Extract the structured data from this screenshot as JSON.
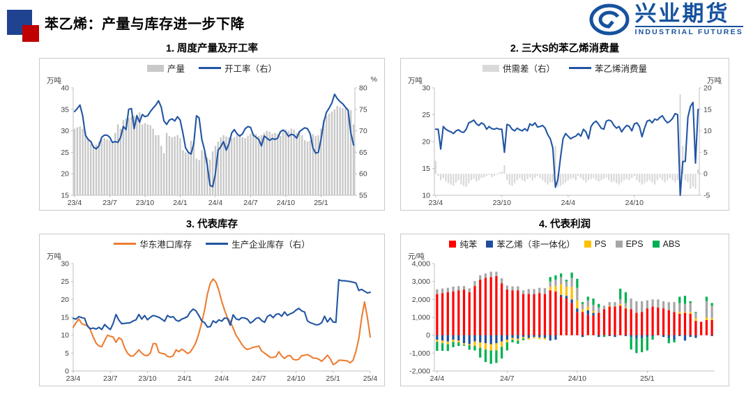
{
  "header": {
    "title": "苯乙烯：产量与库存进一步下降",
    "logo_cn": "兴业期货",
    "logo_en": "INDUSTRIAL FUTURES",
    "logo_color": "#16529E"
  },
  "chart_data": [
    {
      "type": "bar+line",
      "title": "1. 周度产量及开工率",
      "x_ticks": [
        "23/4",
        "23/7",
        "23/10",
        "24/1",
        "24/4",
        "24/7",
        "24/10",
        "25/1"
      ],
      "x_tick_step": 13,
      "y_left": {
        "label": "万吨",
        "min": 15,
        "max": 40,
        "ticks": [
          15,
          20,
          25,
          30,
          35,
          40
        ]
      },
      "y_right": {
        "label": "%",
        "min": 55,
        "max": 80,
        "ticks": [
          55,
          60,
          65,
          70,
          75,
          80
        ]
      },
      "series": [
        {
          "name": "产量",
          "type": "bar",
          "axis": "left",
          "color": "#C8C8C8",
          "values": [
            30.5,
            30.8,
            31.0,
            30.5,
            30.0,
            28.0,
            27.0,
            26.5,
            26.8,
            27.5,
            28.0,
            28.3,
            28.0,
            27.8,
            27.3,
            29.5,
            31.5,
            30.5,
            32.5,
            32.8,
            33.0,
            33.3,
            33.5,
            33.8,
            34.3,
            31.5,
            31.8,
            31.5,
            31.3,
            30.5,
            29.0,
            29.0,
            26.5,
            24.8,
            29.5,
            28.8,
            28.5,
            28.7,
            29.0,
            28.3,
            25.5,
            25.0,
            25.2,
            27.7,
            27.5,
            23.5,
            23.2,
            25.5,
            25.0,
            23.8,
            23.3,
            25.2,
            26.5,
            27.5,
            28.5,
            29.0,
            28.7,
            28.5,
            28.3,
            28.5,
            29.0,
            28.8,
            28.5,
            28.3,
            28.8,
            29.3,
            29.5,
            29.2,
            28.8,
            29.0,
            29.5,
            30.0,
            29.8,
            29.3,
            29.5,
            29.3,
            28.8,
            29.8,
            30.3,
            30.0,
            30.5,
            30.3,
            29.5,
            30.0,
            29.0,
            27.8,
            27.5,
            27.7,
            29.2,
            28.8,
            29.0,
            30.5,
            32.5,
            33.5,
            34.0,
            34.5,
            35.0,
            35.8,
            35.5,
            35.3,
            35.2,
            35.0,
            34.8,
            31.5
          ]
        },
        {
          "name": "开工率（右）",
          "type": "line",
          "axis": "right",
          "color": "#2155A3",
          "values": [
            74.5,
            75.2,
            76.0,
            73.5,
            69.0,
            68.0,
            67.5,
            66.2,
            65.8,
            66.5,
            68.5,
            69.0,
            69.0,
            68.5,
            67.3,
            67.5,
            67.3,
            68.5,
            71.0,
            70.3,
            75.0,
            75.2,
            70.5,
            73.5,
            72.0,
            73.8,
            73.3,
            73.5,
            74.5,
            75.3,
            76.0,
            77.0,
            75.5,
            72.3,
            71.5,
            72.5,
            72.8,
            72.3,
            73.3,
            72.5,
            69.5,
            66.0,
            65.0,
            64.6,
            67.0,
            73.5,
            73.0,
            68.0,
            65.5,
            62.0,
            57.3,
            57.0,
            60.0,
            65.5,
            66.3,
            67.5,
            65.5,
            67.0,
            69.5,
            70.3,
            69.3,
            68.8,
            69.3,
            70.5,
            71.0,
            70.8,
            69.0,
            68.5,
            68.0,
            66.5,
            68.8,
            68.3,
            67.8,
            68.2,
            68.0,
            68.3,
            69.8,
            70.2,
            69.7,
            68.7,
            69.2,
            69.0,
            68.3,
            69.8,
            70.3,
            70.7,
            70.5,
            69.3,
            66.0,
            64.8,
            65.0,
            68.0,
            72.0,
            74.3,
            75.3,
            76.5,
            78.5,
            77.5,
            76.8,
            76.3,
            75.5,
            74.8,
            69.5,
            66.7
          ]
        }
      ]
    },
    {
      "type": "bar+line",
      "title": "2. 三大S的苯乙烯消费量",
      "x_ticks": [
        "23/4",
        "23/10",
        "24/4",
        "24/10"
      ],
      "x_tick_step": 26,
      "y_left": {
        "label": "万吨",
        "min": 10,
        "max": 30,
        "ticks": [
          10,
          15,
          20,
          25,
          30
        ]
      },
      "y_right": {
        "label": "万吨",
        "min": -5,
        "max": 20,
        "ticks": [
          -5,
          0,
          5,
          10,
          15,
          20
        ]
      },
      "series": [
        {
          "name": "供需差（右）",
          "type": "bar",
          "axis": "right",
          "color": "#D9D9D9",
          "values": [
            3.0,
            -0.5,
            -1.5,
            -1.0,
            -1.8,
            -2.2,
            -2.5,
            -2.8,
            -2.0,
            -1.5,
            -2.5,
            -2.8,
            -3.0,
            -2.2,
            -1.5,
            -1.2,
            -1.8,
            -1.5,
            -1.0,
            -0.8,
            -0.5,
            -0.3,
            -0.8,
            -0.5,
            -0.2,
            0.3,
            0.5,
            2.0,
            -1.5,
            -2.5,
            -2.8,
            -2.2,
            -1.5,
            -1.0,
            -1.5,
            -1.8,
            -1.2,
            -0.8,
            -1.5,
            -1.0,
            -0.5,
            -1.0,
            -1.5,
            -2.0,
            -2.5,
            -2.0,
            -2.0,
            6.5,
            -3.0,
            -2.8,
            -2.5,
            -2.0,
            -1.5,
            -1.2,
            -1.0,
            -1.5,
            -0.5,
            -1.0,
            -1.5,
            -2.0,
            -1.5,
            -1.2,
            -1.0,
            -1.5,
            -1.8,
            -1.5,
            -1.2,
            -0.8,
            -1.5,
            -2.0,
            -1.8,
            -2.2,
            -2.5,
            -2.0,
            -1.5,
            -1.2,
            -1.5,
            -1.0,
            -0.5,
            -1.5,
            -2.0,
            -2.5,
            -2.2,
            -1.8,
            -1.5,
            -2.0,
            -2.5,
            -1.5,
            -1.0,
            -1.5,
            -2.0,
            -1.5,
            -1.0,
            -1.5,
            -2.0,
            -1.5,
            18.5,
            6.5,
            -1.5,
            -2.0,
            -3.5,
            -3.0,
            -3.5,
            1.0
          ]
        },
        {
          "name": "苯乙烯消费量",
          "type": "line",
          "axis": "left",
          "color": "#2155A3",
          "values": [
            22.3,
            22.3,
            18.6,
            22.8,
            22.3,
            22.0,
            21.8,
            21.5,
            22.0,
            22.2,
            21.8,
            21.7,
            22.3,
            23.5,
            23.7,
            24.0,
            23.3,
            23.0,
            23.5,
            23.2,
            22.3,
            22.8,
            22.4,
            22.3,
            22.5,
            22.3,
            22.3,
            18.0,
            23.2,
            23.0,
            22.3,
            22.0,
            22.5,
            22.2,
            22.0,
            22.4,
            22.0,
            23.3,
            23.0,
            23.5,
            22.7,
            22.8,
            23.0,
            22.5,
            21.3,
            20.5,
            18.8,
            11.5,
            13.0,
            17.0,
            20.5,
            21.5,
            21.0,
            20.5,
            20.8,
            21.0,
            21.5,
            21.0,
            22.3,
            21.8,
            20.5,
            22.8,
            23.5,
            23.8,
            23.2,
            22.5,
            22.3,
            23.8,
            24.0,
            23.8,
            23.0,
            22.5,
            22.8,
            21.8,
            22.5,
            23.0,
            22.8,
            22.0,
            23.3,
            23.5,
            22.8,
            20.9,
            22.5,
            23.8,
            24.0,
            23.5,
            24.2,
            24.0,
            24.5,
            24.8,
            24.0,
            23.5,
            23.8,
            24.3,
            25.2,
            25.0,
            9.8,
            16.3,
            16.3,
            24.5,
            26.5,
            27.3,
            16.0,
            26.0
          ]
        }
      ]
    },
    {
      "type": "line",
      "title": "3. 代表库存",
      "x_ticks": [
        "23/4",
        "23/7",
        "23/10",
        "24/1",
        "24/4",
        "24/7",
        "24/10",
        "25/1",
        "25/4"
      ],
      "x_tick_step": 13,
      "y_left": {
        "label": "万吨",
        "min": 0,
        "max": 30,
        "ticks": [
          0,
          5,
          10,
          15,
          20,
          25,
          30
        ]
      },
      "series": [
        {
          "name": "华东港口库存",
          "type": "line",
          "axis": "left",
          "color": "#ED7D31",
          "values": [
            12.2,
            13.5,
            14.5,
            13.2,
            12.9,
            12.8,
            11.5,
            9.5,
            7.8,
            7.0,
            6.8,
            8.5,
            10.0,
            9.7,
            9.5,
            8.0,
            9.3,
            8.8,
            6.5,
            5.0,
            4.2,
            4.2,
            5.0,
            5.9,
            5.0,
            4.4,
            4.3,
            5.0,
            7.7,
            7.6,
            5.2,
            4.9,
            4.8,
            4.1,
            3.9,
            4.3,
            5.9,
            5.4,
            6.1,
            5.6,
            4.9,
            5.3,
            6.5,
            8.0,
            10.5,
            13.5,
            17.0,
            21.5,
            24.5,
            25.7,
            24.8,
            22.5,
            19.5,
            17.0,
            14.8,
            13.8,
            12.0,
            10.0,
            8.8,
            7.5,
            6.5,
            6.0,
            6.3,
            6.6,
            6.8,
            7.0,
            5.6,
            5.0,
            4.4,
            3.8,
            3.8,
            4.0,
            5.4,
            4.2,
            3.5,
            4.2,
            4.3,
            3.3,
            3.1,
            3.3,
            4.3,
            4.4,
            4.6,
            4.2,
            3.6,
            3.6,
            3.3,
            2.7,
            3.5,
            4.4,
            3.4,
            1.8,
            2.2,
            3.0,
            3.0,
            2.9,
            2.8,
            2.3,
            3.0,
            5.5,
            9.0,
            14.8,
            19.3,
            15.0,
            9.5
          ]
        },
        {
          "name": "生产企业库存（右）",
          "type": "line",
          "axis": "left",
          "color": "#2155A3",
          "values": [
            14.7,
            14.5,
            15.2,
            14.9,
            14.7,
            12.5,
            11.8,
            12.0,
            11.7,
            12.2,
            11.6,
            13.0,
            12.2,
            11.6,
            13.3,
            15.8,
            14.2,
            13.2,
            13.3,
            13.4,
            13.5,
            14.0,
            14.3,
            15.8,
            14.5,
            15.5,
            14.3,
            15.0,
            15.5,
            15.3,
            15.0,
            14.5,
            13.9,
            15.5,
            15.0,
            15.2,
            14.2,
            13.9,
            14.5,
            14.8,
            15.2,
            16.5,
            17.3,
            16.8,
            15.5,
            14.0,
            13.5,
            12.3,
            12.4,
            14.0,
            13.5,
            14.3,
            13.9,
            14.8,
            14.7,
            12.8,
            15.7,
            14.6,
            14.3,
            14.9,
            14.8,
            14.5,
            13.4,
            13.9,
            14.7,
            14.9,
            14.1,
            13.6,
            15.2,
            15.7,
            14.9,
            15.8,
            16.0,
            15.3,
            16.5,
            15.5,
            16.0,
            16.3,
            17.0,
            17.5,
            16.8,
            16.5,
            14.0,
            13.5,
            13.2,
            12.9,
            13.0,
            13.5,
            15.3,
            13.7,
            14.8,
            13.7,
            13.6,
            25.5,
            25.2,
            25.2,
            25.1,
            25.0,
            24.8,
            24.6,
            22.5,
            22.8,
            22.3,
            21.8,
            22.0
          ]
        }
      ]
    },
    {
      "type": "stacked-bar",
      "title": "4. 代表利润",
      "x_ticks": [
        "24/4",
        "24/7",
        "24/10",
        "25/1"
      ],
      "x_tick_step": 13,
      "y_left": {
        "label": "元/吨",
        "min": -2000,
        "max": 4000,
        "ticks": [
          -2000,
          -1000,
          0,
          1000,
          2000,
          3000,
          4000
        ],
        "tick_labels": [
          "-2,000",
          "-1,000",
          "0",
          "1,000",
          "2,000",
          "3,000",
          "4,000"
        ]
      },
      "series": [
        {
          "name": "纯苯",
          "type": "bar",
          "axis": "left",
          "color": "#FF0000",
          "values": [
            2300,
            2350,
            2400,
            2450,
            2500,
            2550,
            2400,
            2750,
            3100,
            3200,
            3250,
            3300,
            2900,
            2550,
            2500,
            2500,
            2300,
            2300,
            2300,
            2350,
            2300,
            2500,
            2450,
            2150,
            2050,
            1800,
            1300,
            1300,
            1150,
            1100,
            1250,
            1450,
            1600,
            1600,
            1650,
            1500,
            1450,
            1250,
            1300,
            1500,
            1600,
            1550,
            1500,
            1400,
            1300,
            1200,
            1250,
            1200,
            800,
            750,
            850,
            850
          ]
        },
        {
          "name": "苯乙烯（非一体化）",
          "type": "bar",
          "axis": "left",
          "color": "#1F4E9B",
          "values": [
            -250,
            -300,
            -350,
            -250,
            -300,
            -450,
            -500,
            -350,
            -400,
            -450,
            -500,
            -450,
            -350,
            -250,
            -150,
            -200,
            -100,
            -150,
            -100,
            -120,
            -150,
            -300,
            -250,
            100,
            150,
            200,
            200,
            -100,
            250,
            150,
            -100,
            0,
            -50,
            -100,
            0,
            -50,
            -100,
            -200,
            -150,
            -100,
            -50,
            0,
            -100,
            -150,
            -250,
            -50,
            -300,
            -100,
            -150,
            0,
            0,
            -50
          ]
        },
        {
          "name": "PS",
          "type": "bar",
          "axis": "left",
          "color": "#FFC000",
          "values": [
            -120,
            -150,
            -150,
            -120,
            -100,
            -80,
            -60,
            -250,
            -300,
            -350,
            -350,
            -400,
            -300,
            -150,
            -100,
            -100,
            -80,
            -100,
            -80,
            -100,
            -100,
            200,
            300,
            600,
            500,
            700,
            450,
            150,
            200,
            100,
            0,
            0,
            50,
            0,
            100,
            50,
            0,
            0,
            0,
            0,
            0,
            0,
            0,
            0,
            0,
            100,
            50,
            100,
            150,
            0,
            150,
            100
          ]
        },
        {
          "name": "EPS",
          "type": "bar",
          "axis": "left",
          "color": "#A6A6A6",
          "values": [
            260,
            260,
            250,
            270,
            240,
            200,
            220,
            280,
            250,
            250,
            300,
            250,
            280,
            220,
            230,
            230,
            200,
            280,
            280,
            300,
            330,
            300,
            350,
            400,
            300,
            500,
            700,
            300,
            350,
            350,
            300,
            200,
            200,
            250,
            250,
            250,
            600,
            650,
            600,
            450,
            400,
            450,
            400,
            450,
            550,
            500,
            450,
            500,
            300,
            0,
            900,
            700
          ]
        },
        {
          "name": "ABS",
          "type": "bar",
          "axis": "left",
          "color": "#00B050",
          "values": [
            -500,
            -420,
            -380,
            -300,
            -200,
            -60,
            -250,
            -250,
            -550,
            -700,
            -750,
            -700,
            -650,
            -450,
            -150,
            -180,
            -100,
            0,
            0,
            0,
            0,
            250,
            250,
            200,
            100,
            300,
            500,
            100,
            200,
            350,
            200,
            -100,
            0,
            0,
            600,
            600,
            -700,
            -800,
            -800,
            -750,
            -200,
            0,
            0,
            -300,
            -150,
            350,
            450,
            100,
            50,
            0,
            250,
            150
          ]
        }
      ]
    }
  ]
}
